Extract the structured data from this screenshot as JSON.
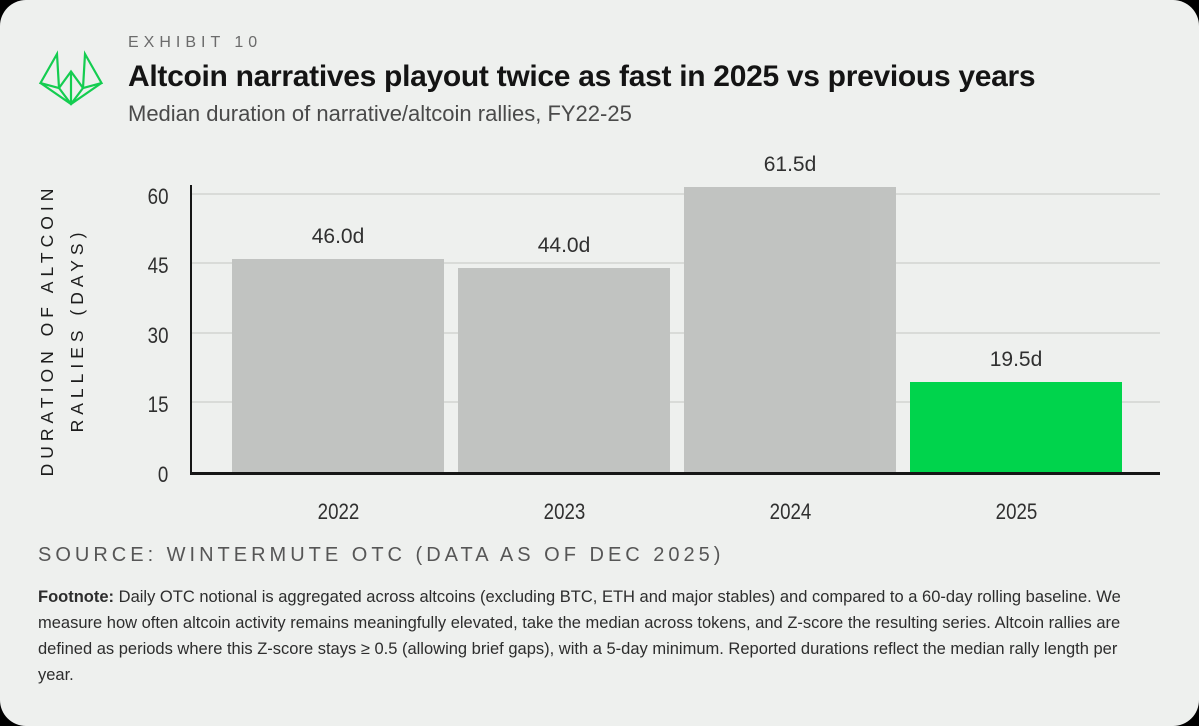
{
  "page": {
    "background": "#000000",
    "card_background": "#eef0ee"
  },
  "header": {
    "kicker": "EXHIBIT 10",
    "title": "Altcoin narratives playout twice as fast in 2025 vs previous years",
    "subtitle": "Median duration of narrative/altcoin rallies, FY22-25",
    "logo_icon": "wintermute-logo",
    "logo_color": "#14cd50"
  },
  "chart_data": {
    "type": "bar",
    "categories": [
      "2022",
      "2023",
      "2024",
      "2025"
    ],
    "values": [
      46.0,
      44.0,
      61.5,
      19.5
    ],
    "value_labels": [
      "46.0d",
      "44.0d",
      "61.5d",
      "19.5d"
    ],
    "bar_colors": [
      "#c1c3c1",
      "#c1c3c1",
      "#c1c3c1",
      "#00d44c"
    ],
    "accent_color": "#00d44c",
    "bar_gray": "#c1c3c1",
    "ylabel_line1": "DURATION OF ALTCOIN",
    "ylabel_line2": "RALLIES (DAYS)",
    "yticks": [
      0,
      15,
      30,
      45,
      60
    ],
    "ylim": [
      0,
      62.5
    ],
    "grid": "horizontal",
    "gridline_color": "#d9dbd8",
    "axis_color": "#161616",
    "legend": "none"
  },
  "source": {
    "text": "SOURCE: WINTERMUTE OTC (DATA AS OF DEC 2025)"
  },
  "footnote": {
    "label": "Footnote:",
    "text": "Daily OTC notional is aggregated across altcoins (excluding BTC, ETH and major stables) and compared to a 60-day rolling baseline. We measure how often altcoin activity remains meaningfully elevated, take the median across tokens, and Z-score the resulting series. Altcoin rallies are defined as periods where this Z-score stays ≥ 0.5 (allowing brief gaps), with a 5-day minimum. Reported durations reflect the median rally length per year."
  }
}
